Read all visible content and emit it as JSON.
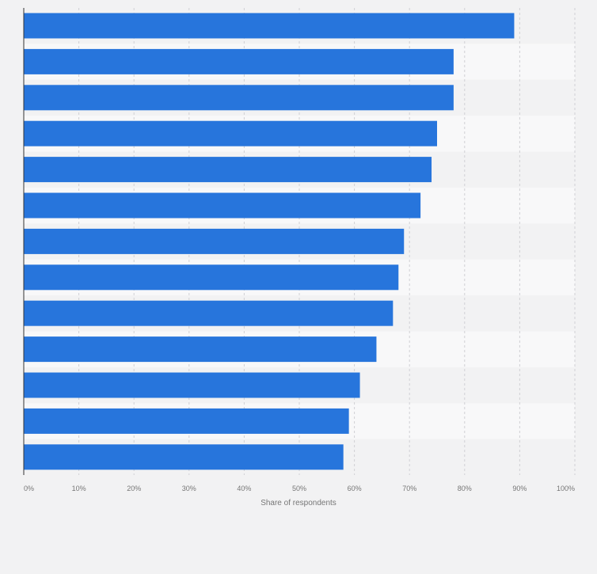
{
  "chart_data": {
    "type": "bar",
    "orientation": "horizontal",
    "categories": [
      "",
      "",
      "",
      "",
      "",
      "",
      "",
      "",
      "",
      "",
      "",
      "",
      ""
    ],
    "values": [
      89,
      78,
      78,
      75,
      74,
      72,
      69,
      68,
      67,
      64,
      61,
      59,
      58
    ],
    "xlabel": "Share of respondents",
    "ylabel": "",
    "xlim": [
      0,
      100
    ],
    "x_ticks": [
      "0%",
      "10%",
      "20%",
      "30%",
      "40%",
      "50%",
      "60%",
      "70%",
      "80%",
      "90%",
      "100%"
    ],
    "grid": true,
    "legend": "none"
  },
  "colors": {
    "bar": "#2775dc",
    "background": "#f2f2f3",
    "band_light": "#f8f8f9",
    "band_dark": "#f2f2f3",
    "gridline": "#d0d0d4",
    "axis": "#333333",
    "tick_text": "#767676"
  }
}
